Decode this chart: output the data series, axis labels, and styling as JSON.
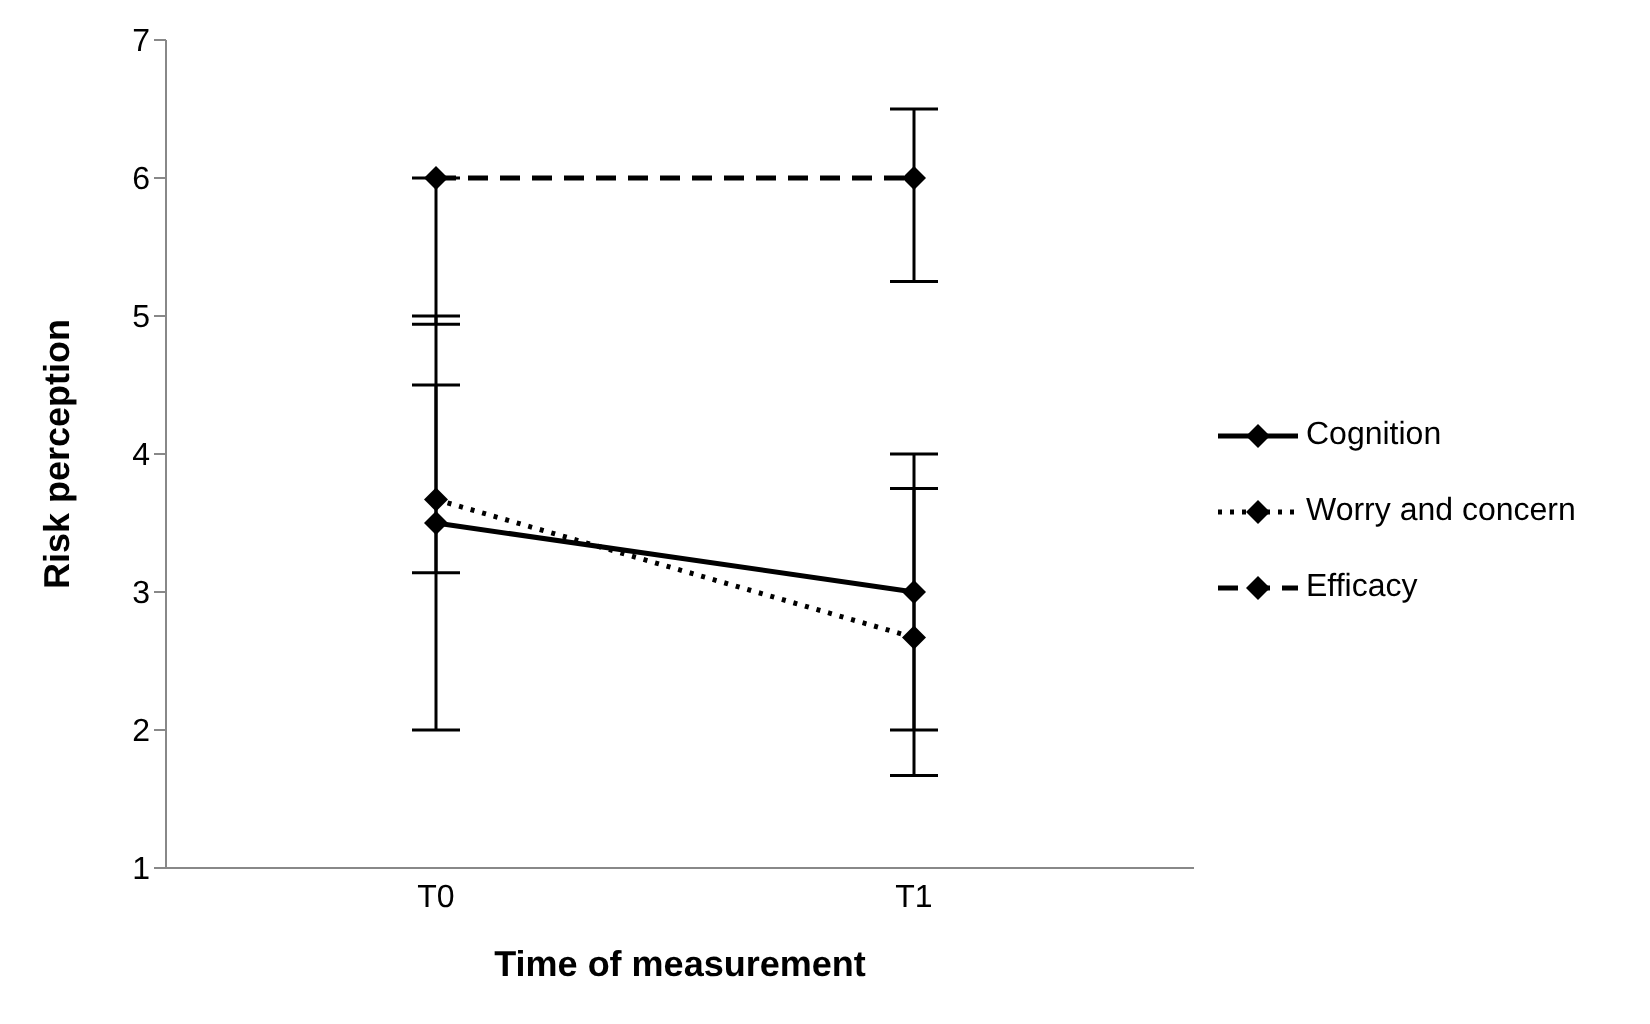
{
  "chart_data": {
    "type": "line",
    "xlabel": "Time of measurement",
    "ylabel": "Risk perception",
    "categories": [
      "T0",
      "T1"
    ],
    "series": [
      {
        "name": "Cognition",
        "color": "#000000",
        "line_style": "solid",
        "values": [
          3.5,
          3
        ],
        "errors": [
          [
            2,
            5
          ],
          [
            2,
            4
          ]
        ]
      },
      {
        "name": "Worry and concern",
        "color": "#000000",
        "line_style": "dotted",
        "values": [
          3.67,
          2.67
        ],
        "errors": [
          [
            3.14,
            4.5
          ],
          [
            1.67,
            3.75
          ]
        ]
      },
      {
        "name": "Efficacy",
        "color": "#000000",
        "line_style": "dashed",
        "values": [
          6,
          6
        ],
        "errors": [
          [
            4.94,
            6
          ],
          [
            5.25,
            6.5
          ]
        ]
      }
    ],
    "ylim": [
      1,
      7
    ],
    "yticks": [
      1,
      2,
      3,
      4,
      5,
      6,
      7
    ],
    "grid": false,
    "legend": "right",
    "marker": "diamond"
  }
}
